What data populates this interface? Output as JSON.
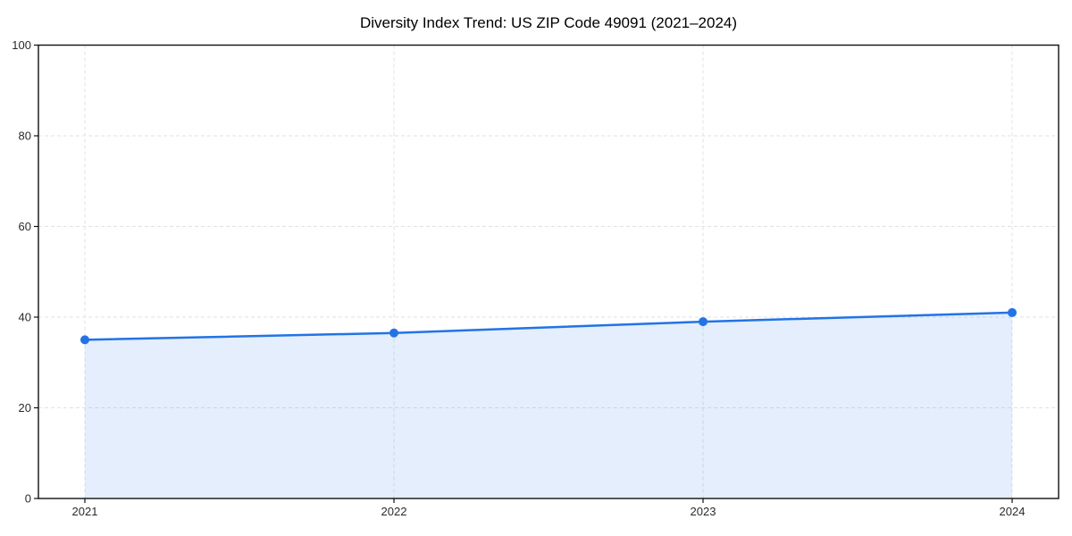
{
  "chart_data": {
    "type": "area",
    "title": "Diversity Index Trend: US ZIP Code 49091 (2021–2024)",
    "categories": [
      "2021",
      "2022",
      "2023",
      "2024"
    ],
    "series": [
      {
        "name": "Diversity Index",
        "values": [
          35.0,
          36.5,
          39.0,
          41.0
        ]
      }
    ],
    "xlabel": "",
    "ylabel": "",
    "ylim": [
      0,
      100
    ],
    "yticks": [
      0,
      20,
      40,
      60,
      80,
      100
    ],
    "grid": {
      "on": true,
      "style": "dashed",
      "axes": "both",
      "color": "#e2e2e2"
    },
    "legend": {
      "visible": false
    },
    "colors": {
      "line": "#2273e6",
      "marker": "#2273e6",
      "fill": "rgba(34,115,230,0.12)",
      "axis": "#111111",
      "tick_label": "#2a2a2a",
      "background": "#ffffff"
    }
  }
}
